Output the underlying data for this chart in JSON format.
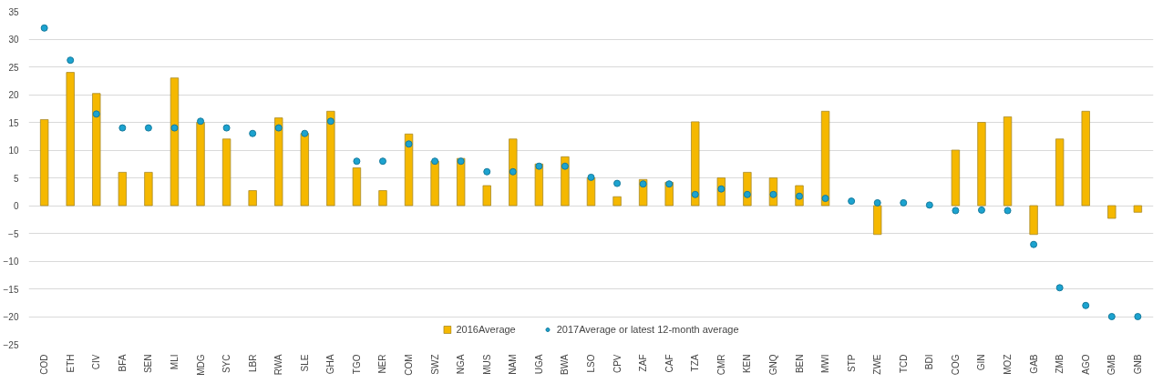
{
  "chart_data": {
    "type": "bar",
    "categories": [
      "COD",
      "ETH",
      "CIV",
      "BFA",
      "SEN",
      "MLI",
      "MDG",
      "SYC",
      "LBR",
      "RWA",
      "SLE",
      "GHA",
      "TGO",
      "NER",
      "COM",
      "SWZ",
      "NGA",
      "MUS",
      "NAM",
      "UGA",
      "BWA",
      "LSO",
      "CPV",
      "ZAF",
      "CAF",
      "TZA",
      "CMR",
      "KEN",
      "GNQ",
      "BEN",
      "MWI",
      "STP",
      "ZWE",
      "TCD",
      "BDI",
      "COG",
      "GIN",
      "MOZ",
      "GAB",
      "ZMB",
      "AGO",
      "GMB",
      "GNB"
    ],
    "series": [
      {
        "name": "2016Average",
        "color": "#f5b800",
        "values": [
          15.5,
          24,
          20.2,
          6,
          6,
          23,
          15,
          12,
          2.7,
          15.8,
          13,
          17,
          6.8,
          2.7,
          12.9,
          8,
          8.5,
          3.6,
          12,
          7.5,
          8.8,
          5,
          1.6,
          4.7,
          4.2,
          15.1,
          5,
          6,
          5,
          3.6,
          17,
          null,
          -5.2,
          null,
          null,
          10,
          15,
          16,
          -5.2,
          12,
          17,
          -2.3,
          -1.2
        ]
      },
      {
        "name": "2017Average or latest 12-month average",
        "type": "scatter",
        "color": "#1ca3d0",
        "values": [
          32,
          26.2,
          16.5,
          14,
          14,
          14,
          15.2,
          14,
          13,
          14,
          13,
          15.2,
          8,
          8,
          11.1,
          8,
          8,
          6.1,
          6.1,
          7.1,
          7.1,
          5.1,
          4,
          3.9,
          3.9,
          2,
          3,
          2,
          2,
          1.7,
          1.3,
          0.8,
          0.5,
          0.5,
          0.1,
          -0.9,
          -0.8,
          -0.9,
          -7,
          -14.8,
          -18,
          -20,
          -20
        ]
      }
    ],
    "ylim": [
      -25,
      35
    ],
    "yticks": [
      -25,
      -20,
      -15,
      -10,
      -5,
      0,
      5,
      10,
      15,
      20,
      25,
      30,
      35
    ],
    "grid": "y",
    "legend": "bottom",
    "marker": "circle"
  }
}
